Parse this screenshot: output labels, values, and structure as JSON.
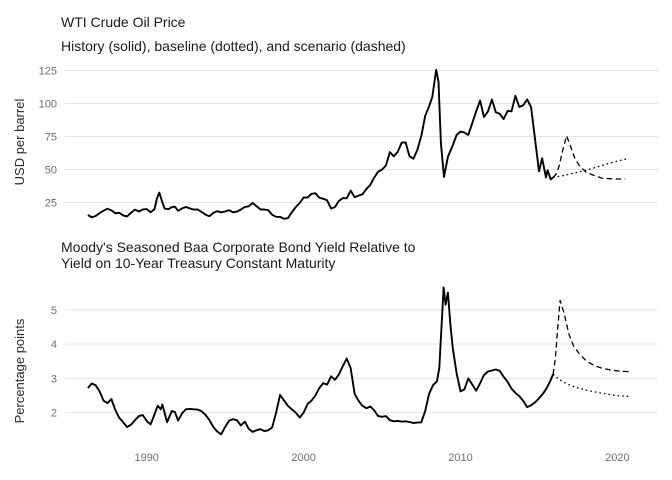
{
  "colors": {
    "line": "#000000",
    "grid": "#e5e5e5",
    "tick_text": "#6f6f6f",
    "title_text": "#1b1b1b",
    "axis_label_text": "#2b2b2b",
    "background": "#ffffff"
  },
  "chart_data": [
    {
      "type": "line",
      "title_lines": [
        "WTI Crude Oil Price"
      ],
      "subtitle": "History (solid), baseline (dotted), and scenario (dashed)",
      "ylabel": "USD per barrel",
      "yticks": [
        25,
        50,
        75,
        100,
        125
      ],
      "ylim": [
        25,
        125
      ],
      "xlim": [
        1984.8,
        2022.6
      ],
      "grid": "horizontal-only",
      "legend": "none",
      "series": [
        {
          "name": "history",
          "style": "solid",
          "x": [
            1986.25,
            1986.5,
            1986.75,
            1987,
            1987.25,
            1987.5,
            1987.75,
            1988,
            1988.25,
            1988.5,
            1988.75,
            1989,
            1989.25,
            1989.5,
            1989.75,
            1990,
            1990.25,
            1990.5,
            1990.65,
            1990.8,
            1991,
            1991.15,
            1991.4,
            1991.6,
            1991.8,
            1992,
            1992.25,
            1992.5,
            1992.75,
            1993,
            1993.25,
            1993.5,
            1993.75,
            1994,
            1994.25,
            1994.5,
            1994.75,
            1995,
            1995.25,
            1995.5,
            1995.75,
            1996,
            1996.25,
            1996.5,
            1996.75,
            1997,
            1997.25,
            1997.5,
            1997.75,
            1998,
            1998.25,
            1998.5,
            1998.75,
            1999,
            1999.25,
            1999.5,
            1999.75,
            2000,
            2000.25,
            2000.5,
            2000.75,
            2001,
            2001.25,
            2001.5,
            2001.75,
            2002,
            2002.25,
            2002.5,
            2002.75,
            2003,
            2003.25,
            2003.5,
            2003.75,
            2004,
            2004.25,
            2004.5,
            2004.75,
            2005,
            2005.25,
            2005.5,
            2005.75,
            2006,
            2006.25,
            2006.5,
            2006.75,
            2007,
            2007.25,
            2007.5,
            2007.75,
            2008,
            2008.2,
            2008.45,
            2008.6,
            2008.75,
            2008.95,
            2009.2,
            2009.5,
            2009.75,
            2010,
            2010.25,
            2010.5,
            2010.75,
            2011,
            2011.25,
            2011.5,
            2011.75,
            2012,
            2012.25,
            2012.5,
            2012.75,
            2013,
            2013.25,
            2013.5,
            2013.75,
            2014,
            2014.25,
            2014.5,
            2014.75,
            2015,
            2015.2,
            2015.45,
            2015.55,
            2015.75,
            2015.9
          ],
          "y": [
            15.5,
            13.8,
            14.8,
            17,
            18.8,
            20.3,
            19,
            16.8,
            17.2,
            15.2,
            14.5,
            17.3,
            19.6,
            18.2,
            19.8,
            20,
            17.6,
            20,
            28,
            32.5,
            25,
            20.3,
            20,
            21.5,
            21.8,
            18.7,
            20.5,
            21.6,
            20.5,
            19.6,
            19.8,
            17.8,
            15.8,
            14.6,
            17.2,
            18.4,
            17.6,
            18.2,
            19.2,
            17.6,
            18.1,
            19.6,
            21.6,
            22.1,
            24.6,
            22.3,
            19.7,
            19.7,
            19.2,
            15.7,
            14.2,
            14.1,
            12.7,
            13.1,
            17.6,
            21.6,
            24.6,
            28.8,
            28.7,
            31.6,
            32,
            28.7,
            27.8,
            26.7,
            20.4,
            21.6,
            26.2,
            28.3,
            28.2,
            34,
            29,
            30.2,
            31.2,
            35.3,
            38.3,
            43.9,
            48.3,
            49.9,
            53.1,
            63.2,
            60,
            63.3,
            70.4,
            70.5,
            60.1,
            58.2,
            65,
            75.4,
            90.7,
            97.9,
            105,
            125.5,
            116.5,
            70,
            44.3,
            59.6,
            68.2,
            76.1,
            78.8,
            78,
            76.2,
            85.2,
            94.1,
            102.3,
            89.8,
            94.1,
            103,
            93.4,
            92.2,
            88.2,
            94.3,
            94.1,
            105.8,
            97.4,
            98.7,
            103.1,
            97.2,
            73.2,
            48.6,
            58.5,
            44,
            49.5,
            42.5,
            44
          ]
        },
        {
          "name": "baseline",
          "style": "dotted",
          "x": [
            2015.9,
            2016.5,
            2017,
            2017.5,
            2018,
            2018.5,
            2019,
            2019.5,
            2020,
            2020.6
          ],
          "y": [
            44,
            45.3,
            46.6,
            48,
            49.5,
            51.2,
            53,
            54.8,
            56.4,
            58
          ]
        },
        {
          "name": "scenario",
          "style": "dashed",
          "x": [
            2015.9,
            2016.1,
            2016.3,
            2016.5,
            2016.76,
            2017,
            2017.3,
            2017.6,
            2018,
            2018.5,
            2019,
            2019.5,
            2020,
            2020.5
          ],
          "y": [
            44,
            46.5,
            53,
            64,
            75.5,
            68,
            58,
            52.5,
            48,
            45.5,
            43.5,
            43,
            42.8,
            42.8
          ]
        }
      ]
    },
    {
      "type": "line",
      "title_lines": [
        "Moody's Seasoned Baa Corporate Bond Yield Relative to",
        "Yield on 10-Year Treasury Constant Maturity"
      ],
      "subtitle": "",
      "ylabel": "Percentage points",
      "yticks": [
        2,
        3,
        4,
        5
      ],
      "ylim": [
        2,
        5
      ],
      "xticks": [
        1990,
        2000,
        2010,
        2020
      ],
      "xlim": [
        1984.8,
        2022.6
      ],
      "grid": "horizontal-only",
      "legend": "none",
      "series": [
        {
          "name": "history",
          "style": "solid",
          "x": [
            1986.25,
            1986.5,
            1986.75,
            1987,
            1987.25,
            1987.5,
            1987.75,
            1988,
            1988.25,
            1988.5,
            1988.75,
            1989,
            1989.25,
            1989.5,
            1989.75,
            1990,
            1990.25,
            1990.5,
            1990.7,
            1990.9,
            1991,
            1991.3,
            1991.6,
            1991.8,
            1992,
            1992.25,
            1992.5,
            1992.75,
            1993,
            1993.25,
            1993.5,
            1993.75,
            1994,
            1994.25,
            1994.5,
            1994.75,
            1995,
            1995.25,
            1995.5,
            1995.75,
            1996,
            1996.25,
            1996.5,
            1996.75,
            1997,
            1997.25,
            1997.5,
            1997.75,
            1998,
            1998.25,
            1998.5,
            1998.75,
            1999,
            1999.25,
            1999.5,
            1999.75,
            2000,
            2000.25,
            2000.5,
            2000.75,
            2001,
            2001.25,
            2001.5,
            2001.75,
            2002,
            2002.25,
            2002.5,
            2002.75,
            2003,
            2003.25,
            2003.5,
            2003.75,
            2004,
            2004.25,
            2004.5,
            2004.75,
            2005,
            2005.25,
            2005.5,
            2005.75,
            2006,
            2006.25,
            2006.5,
            2006.75,
            2007,
            2007.25,
            2007.5,
            2007.75,
            2008,
            2008.25,
            2008.5,
            2008.65,
            2008.8,
            2008.92,
            2009.05,
            2009.2,
            2009.35,
            2009.5,
            2009.75,
            2010,
            2010.25,
            2010.5,
            2010.75,
            2011,
            2011.25,
            2011.5,
            2011.75,
            2012,
            2012.25,
            2012.5,
            2012.75,
            2013,
            2013.25,
            2013.5,
            2013.75,
            2014,
            2014.25,
            2014.5,
            2014.75,
            2015,
            2015.25,
            2015.5,
            2015.75,
            2015.9
          ],
          "y": [
            2.72,
            2.85,
            2.8,
            2.62,
            2.35,
            2.28,
            2.4,
            2.08,
            1.85,
            1.72,
            1.58,
            1.65,
            1.78,
            1.9,
            1.93,
            1.76,
            1.66,
            1.95,
            2.2,
            2.1,
            2.24,
            1.72,
            2.05,
            2.02,
            1.77,
            1.98,
            2.1,
            2.11,
            2.1,
            2.09,
            2.04,
            1.94,
            1.78,
            1.58,
            1.45,
            1.37,
            1.58,
            1.77,
            1.81,
            1.78,
            1.63,
            1.74,
            1.53,
            1.44,
            1.49,
            1.52,
            1.46,
            1.49,
            1.57,
            2,
            2.52,
            2.36,
            2.2,
            2.1,
            2,
            1.86,
            2,
            2.25,
            2.35,
            2.5,
            2.72,
            2.86,
            2.82,
            3.06,
            2.96,
            3.12,
            3.36,
            3.58,
            3.3,
            2.55,
            2.35,
            2.2,
            2.13,
            2.18,
            2.07,
            1.9,
            1.88,
            1.9,
            1.78,
            1.75,
            1.76,
            1.74,
            1.75,
            1.73,
            1.7,
            1.71,
            1.72,
            2.05,
            2.55,
            2.8,
            2.92,
            3.3,
            4.6,
            5.65,
            5.15,
            5.5,
            4.6,
            3.9,
            3.15,
            2.62,
            2.68,
            3,
            2.82,
            2.64,
            2.86,
            3.1,
            3.2,
            3.23,
            3.26,
            3.22,
            3.05,
            2.9,
            2.7,
            2.58,
            2.48,
            2.34,
            2.16,
            2.22,
            2.3,
            2.42,
            2.55,
            2.72,
            2.95,
            3.12
          ]
        },
        {
          "name": "baseline",
          "style": "dotted",
          "x": [
            2015.9,
            2016.25,
            2016.6,
            2017,
            2017.5,
            2018,
            2018.5,
            2019,
            2019.5,
            2020,
            2020.5,
            2020.8
          ],
          "y": [
            3.12,
            2.98,
            2.88,
            2.8,
            2.72,
            2.66,
            2.61,
            2.57,
            2.53,
            2.5,
            2.48,
            2.47
          ]
        },
        {
          "name": "scenario",
          "style": "dashed",
          "x": [
            2015.9,
            2016.05,
            2016.2,
            2016.35,
            2016.6,
            2016.9,
            2017.2,
            2017.6,
            2018,
            2018.5,
            2019,
            2019.5,
            2020,
            2020.5,
            2020.8
          ],
          "y": [
            3.12,
            3.6,
            4.5,
            5.27,
            4.9,
            4.3,
            3.95,
            3.7,
            3.52,
            3.38,
            3.3,
            3.25,
            3.22,
            3.2,
            3.2
          ]
        }
      ]
    }
  ]
}
